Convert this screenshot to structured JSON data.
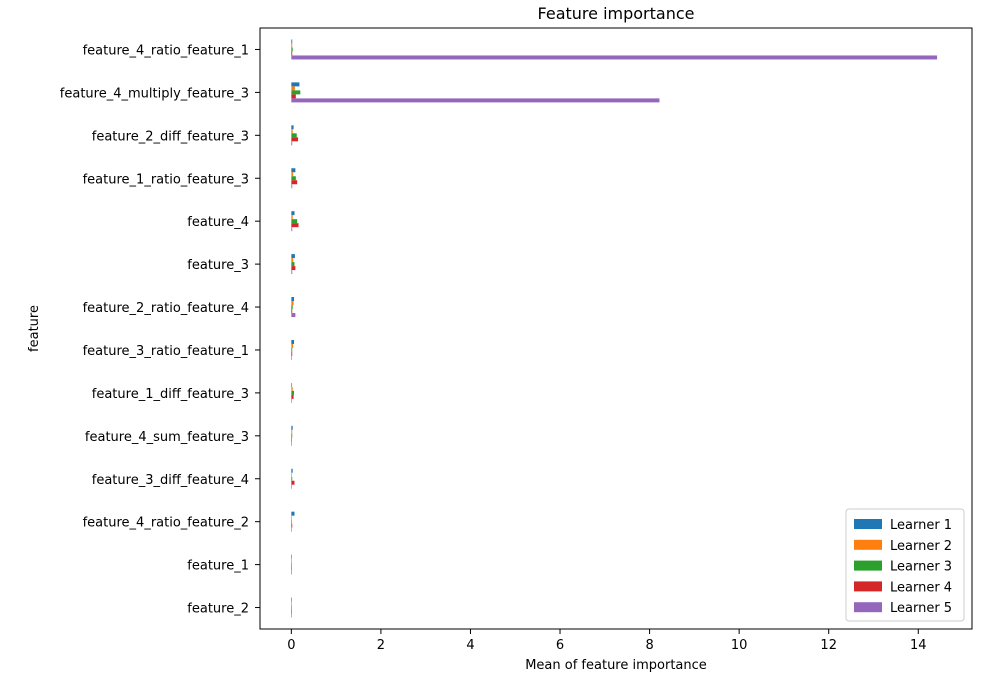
{
  "chart_data": {
    "type": "bar",
    "orientation": "horizontal",
    "title": "Feature importance",
    "xlabel": "Mean of feature importance",
    "ylabel": "feature",
    "xlim": [
      -0.7,
      15.2
    ],
    "xticks": [
      0,
      2,
      4,
      6,
      8,
      10,
      12,
      14
    ],
    "grid": false,
    "legend_position": "lower-right",
    "categories": [
      "feature_4_ratio_feature_1",
      "feature_4_multiply_feature_3",
      "feature_2_diff_feature_3",
      "feature_1_ratio_feature_3",
      "feature_4",
      "feature_3",
      "feature_2_ratio_feature_4",
      "feature_3_ratio_feature_1",
      "feature_1_diff_feature_3",
      "feature_4_sum_feature_3",
      "feature_3_diff_feature_4",
      "feature_4_ratio_feature_2",
      "feature_1",
      "feature_2"
    ],
    "series": [
      {
        "name": "Learner 1",
        "color": "#1f77b4",
        "values": [
          0.02,
          0.18,
          0.05,
          0.09,
          0.07,
          0.08,
          0.06,
          0.06,
          0.01,
          0.03,
          0.03,
          0.07,
          0.0,
          0.0
        ]
      },
      {
        "name": "Learner 2",
        "color": "#ff7f0e",
        "values": [
          0.02,
          0.08,
          0.03,
          0.04,
          0.03,
          0.04,
          0.05,
          0.04,
          0.03,
          0.02,
          0.01,
          0.01,
          0.0,
          0.0
        ]
      },
      {
        "name": "Learner 3",
        "color": "#2ca02c",
        "values": [
          0.03,
          0.2,
          0.12,
          0.1,
          0.13,
          0.07,
          0.03,
          0.02,
          0.06,
          0.02,
          0.02,
          0.01,
          0.0,
          0.0
        ]
      },
      {
        "name": "Learner 4",
        "color": "#d62728",
        "values": [
          0.02,
          0.1,
          0.15,
          0.13,
          0.16,
          0.09,
          0.02,
          0.02,
          0.05,
          0.01,
          0.07,
          0.02,
          0.0,
          0.0
        ]
      },
      {
        "name": "Learner 5",
        "color": "#9467bd",
        "values": [
          14.42,
          8.22,
          0.02,
          0.02,
          0.02,
          0.02,
          0.09,
          0.01,
          0.01,
          0.01,
          0.01,
          0.01,
          0.0,
          0.0
        ]
      }
    ]
  }
}
